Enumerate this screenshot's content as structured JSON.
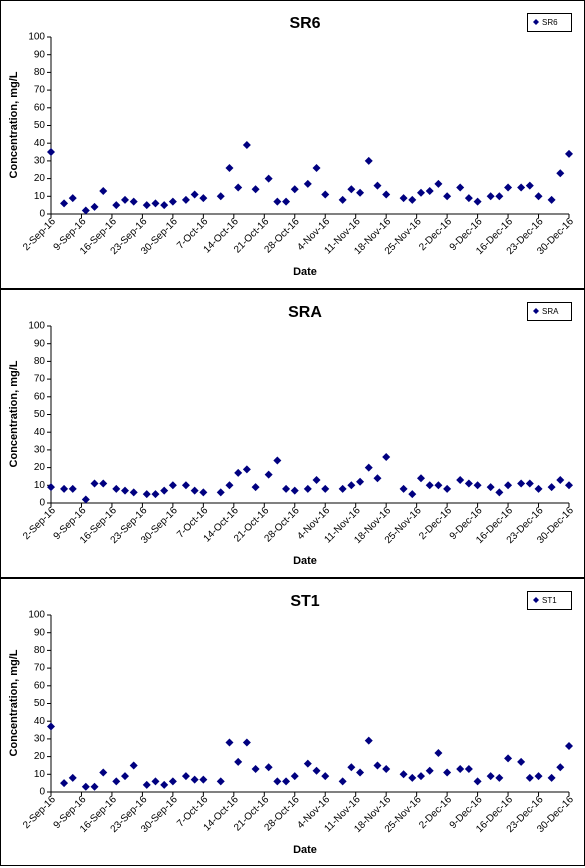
{
  "chart_data": [
    {
      "type": "scatter",
      "title": "SR6",
      "x_label": "Date",
      "y_label": "Concentration, mg/L",
      "legend": "top-right",
      "x": [
        "2016-09-02",
        "2016-09-05",
        "2016-09-07",
        "2016-09-10",
        "2016-09-12",
        "2016-09-14",
        "2016-09-17",
        "2016-09-19",
        "2016-09-21",
        "2016-09-24",
        "2016-09-26",
        "2016-09-28",
        "2016-09-30",
        "2016-10-03",
        "2016-10-05",
        "2016-10-07",
        "2016-10-11",
        "2016-10-13",
        "2016-10-15",
        "2016-10-17",
        "2016-10-19",
        "2016-10-22",
        "2016-10-24",
        "2016-10-26",
        "2016-10-28",
        "2016-10-31",
        "2016-11-02",
        "2016-11-04",
        "2016-11-08",
        "2016-11-10",
        "2016-11-12",
        "2016-11-14",
        "2016-11-16",
        "2016-11-18",
        "2016-11-22",
        "2016-11-24",
        "2016-11-26",
        "2016-11-28",
        "2016-11-30",
        "2016-12-02",
        "2016-12-05",
        "2016-12-07",
        "2016-12-09",
        "2016-12-12",
        "2016-12-14",
        "2016-12-16",
        "2016-12-19",
        "2016-12-21",
        "2016-12-23",
        "2016-12-26",
        "2016-12-28",
        "2016-12-30"
      ],
      "series": [
        {
          "name": "SR6",
          "color": "#000080",
          "values": [
            35,
            6,
            9,
            2,
            4,
            13,
            5,
            8,
            7,
            5,
            6,
            5,
            7,
            8,
            11,
            9,
            10,
            26,
            15,
            39,
            14,
            20,
            7,
            7,
            14,
            17,
            26,
            11,
            8,
            14,
            12,
            30,
            16,
            11,
            9,
            8,
            12,
            13,
            17,
            10,
            15,
            9,
            7,
            10,
            10,
            15,
            15,
            16,
            10,
            8,
            23,
            34
          ]
        }
      ],
      "xlim": [
        "2016-09-02",
        "2016-12-30"
      ],
      "xticks": [
        {
          "value": "2016-09-02",
          "label": "2-Sep-16"
        },
        {
          "value": "2016-09-09",
          "label": "9-Sep-16"
        },
        {
          "value": "2016-09-16",
          "label": "16-Sep-16"
        },
        {
          "value": "2016-09-23",
          "label": "23-Sep-16"
        },
        {
          "value": "2016-09-30",
          "label": "30-Sep-16"
        },
        {
          "value": "2016-10-07",
          "label": "7-Oct-16"
        },
        {
          "value": "2016-10-14",
          "label": "14-Oct-16"
        },
        {
          "value": "2016-10-21",
          "label": "21-Oct-16"
        },
        {
          "value": "2016-10-28",
          "label": "28-Oct-16"
        },
        {
          "value": "2016-11-04",
          "label": "4-Nov-16"
        },
        {
          "value": "2016-11-11",
          "label": "11-Nov-16"
        },
        {
          "value": "2016-11-18",
          "label": "18-Nov-16"
        },
        {
          "value": "2016-11-25",
          "label": "25-Nov-16"
        },
        {
          "value": "2016-12-02",
          "label": "2-Dec-16"
        },
        {
          "value": "2016-12-09",
          "label": "9-Dec-16"
        },
        {
          "value": "2016-12-16",
          "label": "16-Dec-16"
        },
        {
          "value": "2016-12-23",
          "label": "23-Dec-16"
        },
        {
          "value": "2016-12-30",
          "label": "30-Dec-16"
        }
      ],
      "ylim": [
        0,
        100
      ],
      "yticks": [
        0,
        10,
        20,
        30,
        40,
        50,
        60,
        70,
        80,
        90,
        100
      ]
    },
    {
      "type": "scatter",
      "title": "SRA",
      "x_label": "Date",
      "y_label": "Concentration, mg/L",
      "legend": "top-right",
      "x": [
        "2016-09-02",
        "2016-09-05",
        "2016-09-07",
        "2016-09-10",
        "2016-09-12",
        "2016-09-14",
        "2016-09-17",
        "2016-09-19",
        "2016-09-21",
        "2016-09-24",
        "2016-09-26",
        "2016-09-28",
        "2016-09-30",
        "2016-10-03",
        "2016-10-05",
        "2016-10-07",
        "2016-10-11",
        "2016-10-13",
        "2016-10-15",
        "2016-10-17",
        "2016-10-19",
        "2016-10-22",
        "2016-10-24",
        "2016-10-26",
        "2016-10-28",
        "2016-10-31",
        "2016-11-02",
        "2016-11-04",
        "2016-11-08",
        "2016-11-10",
        "2016-11-12",
        "2016-11-14",
        "2016-11-16",
        "2016-11-18",
        "2016-11-22",
        "2016-11-24",
        "2016-11-26",
        "2016-11-28",
        "2016-11-30",
        "2016-12-02",
        "2016-12-05",
        "2016-12-07",
        "2016-12-09",
        "2016-12-12",
        "2016-12-14",
        "2016-12-16",
        "2016-12-19",
        "2016-12-21",
        "2016-12-23",
        "2016-12-26",
        "2016-12-28",
        "2016-12-30"
      ],
      "series": [
        {
          "name": "SRA",
          "color": "#000080",
          "values": [
            9,
            8,
            8,
            2,
            11,
            11,
            8,
            7,
            6,
            5,
            5,
            7,
            10,
            10,
            7,
            6,
            6,
            10,
            17,
            19,
            9,
            16,
            24,
            8,
            7,
            8,
            13,
            8,
            8,
            10,
            12,
            20,
            14,
            26,
            8,
            5,
            14,
            10,
            10,
            8,
            13,
            11,
            10,
            9,
            6,
            10,
            11,
            11,
            8,
            9,
            13,
            10
          ]
        }
      ],
      "xlim": [
        "2016-09-02",
        "2016-12-30"
      ],
      "xticks": [
        {
          "value": "2016-09-02",
          "label": "2-Sep-16"
        },
        {
          "value": "2016-09-09",
          "label": "9-Sep-16"
        },
        {
          "value": "2016-09-16",
          "label": "16-Sep-16"
        },
        {
          "value": "2016-09-23",
          "label": "23-Sep-16"
        },
        {
          "value": "2016-09-30",
          "label": "30-Sep-16"
        },
        {
          "value": "2016-10-07",
          "label": "7-Oct-16"
        },
        {
          "value": "2016-10-14",
          "label": "14-Oct-16"
        },
        {
          "value": "2016-10-21",
          "label": "21-Oct-16"
        },
        {
          "value": "2016-10-28",
          "label": "28-Oct-16"
        },
        {
          "value": "2016-11-04",
          "label": "4-Nov-16"
        },
        {
          "value": "2016-11-11",
          "label": "11-Nov-16"
        },
        {
          "value": "2016-11-18",
          "label": "18-Nov-16"
        },
        {
          "value": "2016-11-25",
          "label": "25-Nov-16"
        },
        {
          "value": "2016-12-02",
          "label": "2-Dec-16"
        },
        {
          "value": "2016-12-09",
          "label": "9-Dec-16"
        },
        {
          "value": "2016-12-16",
          "label": "16-Dec-16"
        },
        {
          "value": "2016-12-23",
          "label": "23-Dec-16"
        },
        {
          "value": "2016-12-30",
          "label": "30-Dec-16"
        }
      ],
      "ylim": [
        0,
        100
      ],
      "yticks": [
        0,
        10,
        20,
        30,
        40,
        50,
        60,
        70,
        80,
        90,
        100
      ]
    },
    {
      "type": "scatter",
      "title": "ST1",
      "x_label": "Date",
      "y_label": "Concentration, mg/L",
      "legend": "top-right",
      "x": [
        "2016-09-02",
        "2016-09-05",
        "2016-09-07",
        "2016-09-10",
        "2016-09-12",
        "2016-09-14",
        "2016-09-17",
        "2016-09-19",
        "2016-09-21",
        "2016-09-24",
        "2016-09-26",
        "2016-09-28",
        "2016-09-30",
        "2016-10-03",
        "2016-10-05",
        "2016-10-07",
        "2016-10-11",
        "2016-10-13",
        "2016-10-15",
        "2016-10-17",
        "2016-10-19",
        "2016-10-22",
        "2016-10-24",
        "2016-10-26",
        "2016-10-28",
        "2016-10-31",
        "2016-11-02",
        "2016-11-04",
        "2016-11-08",
        "2016-11-10",
        "2016-11-12",
        "2016-11-14",
        "2016-11-16",
        "2016-11-18",
        "2016-11-22",
        "2016-11-24",
        "2016-11-26",
        "2016-11-28",
        "2016-11-30",
        "2016-12-02",
        "2016-12-05",
        "2016-12-07",
        "2016-12-09",
        "2016-12-12",
        "2016-12-14",
        "2016-12-16",
        "2016-12-19",
        "2016-12-21",
        "2016-12-23",
        "2016-12-26",
        "2016-12-28",
        "2016-12-30"
      ],
      "series": [
        {
          "name": "ST1",
          "color": "#000080",
          "values": [
            37,
            5,
            8,
            3,
            3,
            11,
            6,
            9,
            15,
            4,
            6,
            4,
            6,
            9,
            7,
            7,
            6,
            28,
            17,
            28,
            13,
            14,
            6,
            6,
            9,
            16,
            12,
            9,
            6,
            14,
            11,
            29,
            15,
            13,
            10,
            8,
            9,
            12,
            22,
            11,
            13,
            13,
            6,
            9,
            8,
            19,
            17,
            8,
            9,
            8,
            14,
            26
          ]
        }
      ],
      "xlim": [
        "2016-09-02",
        "2016-12-30"
      ],
      "xticks": [
        {
          "value": "2016-09-02",
          "label": "2-Sep-16"
        },
        {
          "value": "2016-09-09",
          "label": "9-Sep-16"
        },
        {
          "value": "2016-09-16",
          "label": "16-Sep-16"
        },
        {
          "value": "2016-09-23",
          "label": "23-Sep-16"
        },
        {
          "value": "2016-09-30",
          "label": "30-Sep-16"
        },
        {
          "value": "2016-10-07",
          "label": "7-Oct-16"
        },
        {
          "value": "2016-10-14",
          "label": "14-Oct-16"
        },
        {
          "value": "2016-10-21",
          "label": "21-Oct-16"
        },
        {
          "value": "2016-10-28",
          "label": "28-Oct-16"
        },
        {
          "value": "2016-11-04",
          "label": "4-Nov-16"
        },
        {
          "value": "2016-11-11",
          "label": "11-Nov-16"
        },
        {
          "value": "2016-11-18",
          "label": "18-Nov-16"
        },
        {
          "value": "2016-11-25",
          "label": "25-Nov-16"
        },
        {
          "value": "2016-12-02",
          "label": "2-Dec-16"
        },
        {
          "value": "2016-12-09",
          "label": "9-Dec-16"
        },
        {
          "value": "2016-12-16",
          "label": "16-Dec-16"
        },
        {
          "value": "2016-12-23",
          "label": "23-Dec-16"
        },
        {
          "value": "2016-12-30",
          "label": "30-Dec-16"
        }
      ],
      "ylim": [
        0,
        100
      ],
      "yticks": [
        0,
        10,
        20,
        30,
        40,
        50,
        60,
        70,
        80,
        90,
        100
      ]
    }
  ]
}
